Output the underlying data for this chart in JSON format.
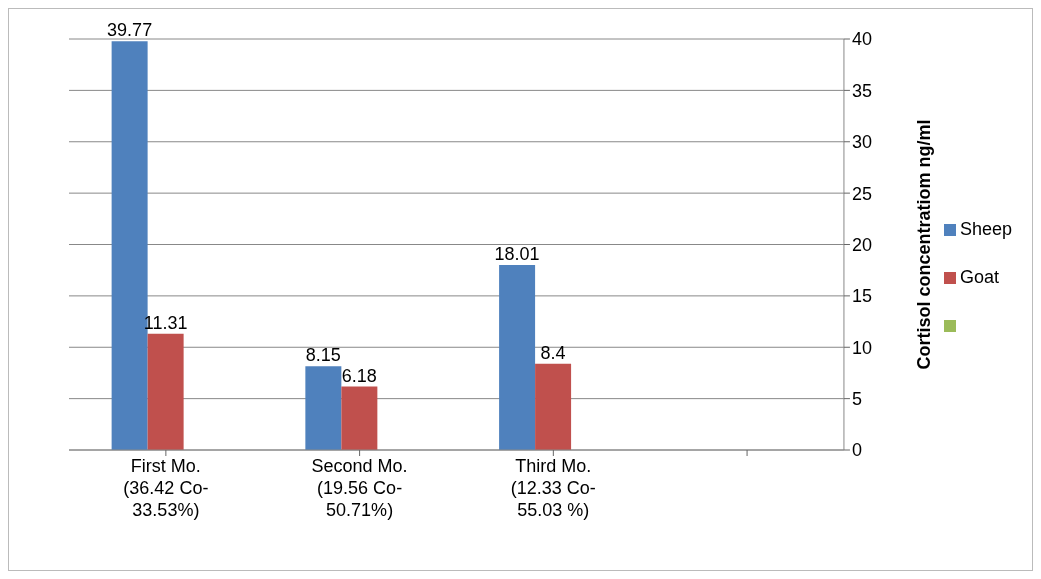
{
  "chart_data": {
    "type": "bar",
    "ylabel": "Cortisol concentratiom ng/ml",
    "categories": [
      "First Mo.\n(36.42 Co-\n33.53%)",
      "Second Mo.\n(19.56 Co-\n50.71%)",
      "Third Mo.\n(12.33 Co-\n55.03 %)",
      null
    ],
    "series": [
      {
        "name": "Sheep",
        "color": "#4f81bd",
        "values": [
          39.77,
          8.15,
          18.01,
          null
        ]
      },
      {
        "name": "Goat",
        "color": "#c0504d",
        "values": [
          11.31,
          6.18,
          8.4,
          null
        ]
      },
      {
        "color": "#9bbb59",
        "values": [
          null,
          null,
          null,
          null
        ]
      }
    ],
    "ylim": [
      0,
      40
    ],
    "yticks": [
      0,
      5,
      10,
      15,
      20,
      25,
      30,
      35,
      40
    ],
    "grid": "y",
    "legend": "right",
    "data_labels": true
  }
}
